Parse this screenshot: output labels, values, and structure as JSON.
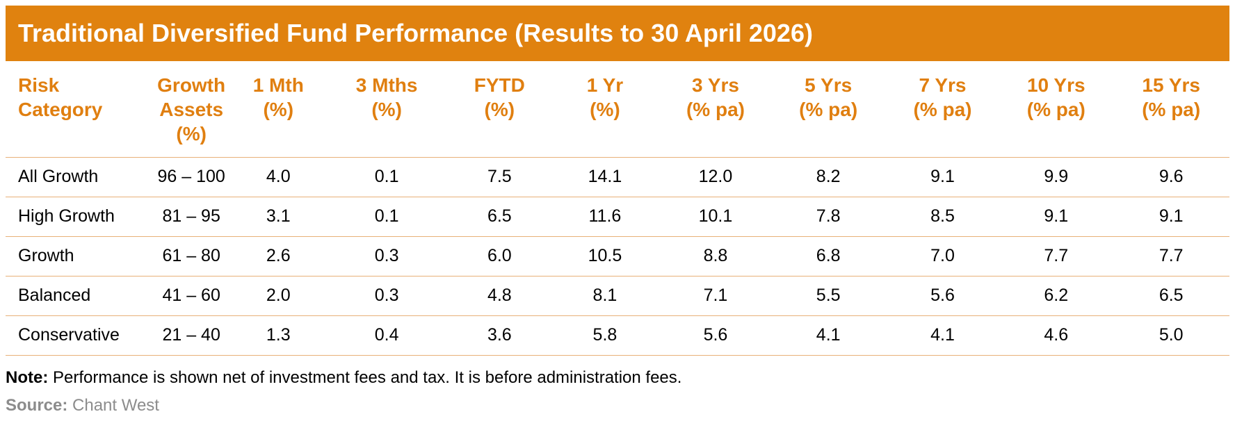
{
  "title": "Traditional Diversified Fund Performance (Results to 30 April 2026)",
  "table": {
    "headers": [
      [
        "Risk",
        "Category"
      ],
      [
        "Growth",
        "Assets",
        "(%)"
      ],
      [
        "1 Mth",
        "(%)"
      ],
      [
        "3 Mths",
        "(%)"
      ],
      [
        "FYTD",
        "(%)"
      ],
      [
        "1 Yr",
        "(%)"
      ],
      [
        "3 Yrs",
        "(% pa)"
      ],
      [
        "5 Yrs",
        "(% pa)"
      ],
      [
        "7 Yrs",
        "(% pa)"
      ],
      [
        "10 Yrs",
        "(% pa)"
      ],
      [
        "15 Yrs",
        "(% pa)"
      ]
    ],
    "rows": [
      [
        "All Growth",
        "96 – 100",
        "4.0",
        "0.1",
        "7.5",
        "14.1",
        "12.0",
        "8.2",
        "9.1",
        "9.9",
        "9.6"
      ],
      [
        "High Growth",
        "81 – 95",
        "3.1",
        "0.1",
        "6.5",
        "11.6",
        "10.1",
        "7.8",
        "8.5",
        "9.1",
        "9.1"
      ],
      [
        "Growth",
        "61 – 80",
        "2.6",
        "0.3",
        "6.0",
        "10.5",
        "8.8",
        "6.8",
        "7.0",
        "7.7",
        "7.7"
      ],
      [
        "Balanced",
        "41 – 60",
        "2.0",
        "0.3",
        "4.8",
        "8.1",
        "7.1",
        "5.5",
        "5.6",
        "6.2",
        "6.5"
      ],
      [
        "Conservative",
        "21 – 40",
        "1.3",
        "0.4",
        "3.6",
        "5.8",
        "5.6",
        "4.1",
        "4.1",
        "4.6",
        "5.0"
      ]
    ]
  },
  "note": {
    "label": "Note:",
    "text": " Performance is shown net of investment fees and tax. It is before administration fees."
  },
  "source": {
    "label": "Source:",
    "text": " Chant West"
  },
  "colors": {
    "accent": "#E0820F",
    "header_text": "#E07F10",
    "source_text": "#8C8C8C",
    "row_rule": "#E8B078"
  }
}
